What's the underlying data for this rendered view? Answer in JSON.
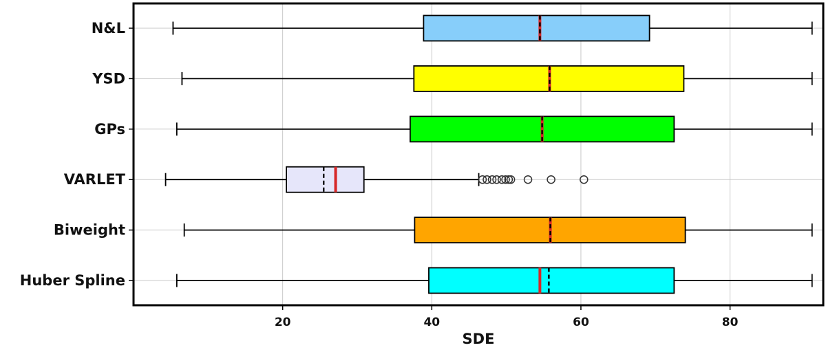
{
  "chart_data": {
    "type": "boxplot",
    "orientation": "horizontal",
    "xlabel": "SDE",
    "xlim": [
      0,
      92.5
    ],
    "xticks": [
      20,
      40,
      60,
      80
    ],
    "grid": true,
    "categories": [
      "N&L",
      "YSD",
      "GPs",
      "VARLET",
      "Biweight",
      "Huber Spline"
    ],
    "boxes": [
      {
        "label": "N&L",
        "whisker_low": 5.3,
        "q1": 38.9,
        "median": 54.5,
        "mean": 54.5,
        "q3": 69.2,
        "whisker_high": 91.0,
        "outliers": [],
        "color": "#87CEFA"
      },
      {
        "label": "YSD",
        "whisker_low": 6.5,
        "q1": 37.6,
        "median": 55.8,
        "mean": 55.8,
        "q3": 73.8,
        "whisker_high": 91.0,
        "outliers": [],
        "color": "#FFFF00"
      },
      {
        "label": "GPs",
        "whisker_low": 5.8,
        "q1": 37.1,
        "median": 54.8,
        "mean": 54.8,
        "q3": 72.5,
        "whisker_high": 91.0,
        "outliers": [],
        "color": "#00FF00"
      },
      {
        "label": "VARLET",
        "whisker_low": 4.3,
        "q1": 20.5,
        "median": 27.1,
        "mean": 25.5,
        "q3": 30.9,
        "whisker_high": 46.3,
        "outliers": [
          46.8,
          47.4,
          48.1,
          48.7,
          49.4,
          49.9,
          50.3,
          50.6,
          52.9,
          56.0,
          60.4
        ],
        "color": "#E6E6FA"
      },
      {
        "label": "Biweight",
        "whisker_low": 6.8,
        "q1": 37.7,
        "median": 55.9,
        "mean": 55.9,
        "q3": 74.0,
        "whisker_high": 91.0,
        "outliers": [],
        "color": "#FFA500"
      },
      {
        "label": "Huber Spline",
        "whisker_low": 5.8,
        "q1": 39.6,
        "median": 54.5,
        "mean": 55.7,
        "q3": 72.5,
        "whisker_high": 91.0,
        "outliers": [],
        "color": "#00FFFF"
      }
    ],
    "median_color": "#D62728"
  }
}
